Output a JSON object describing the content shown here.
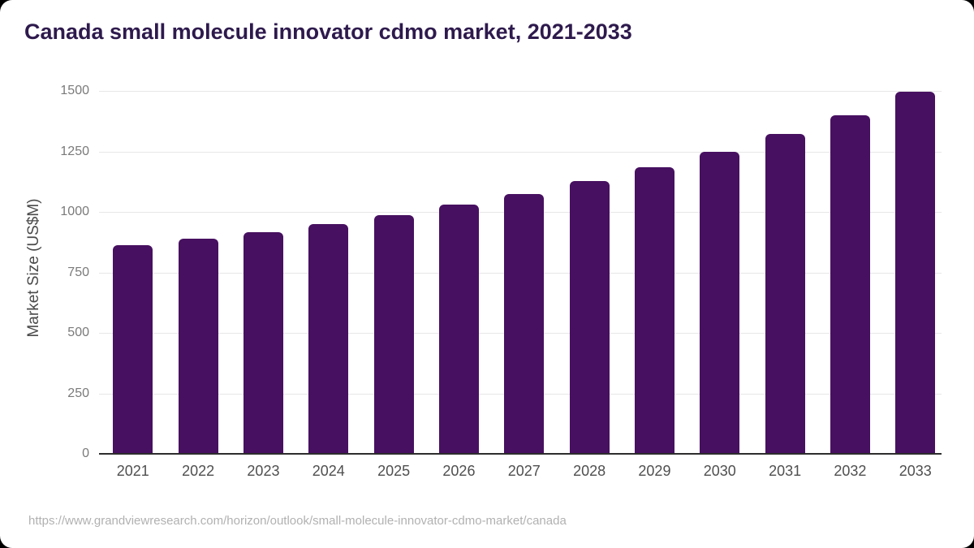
{
  "page": {
    "background_color": "#000000",
    "source_url": "https://www.grandviewresearch.com/horizon/outlook/small-molecule-innovator-cdmo-market/canada"
  },
  "chart_data": {
    "type": "bar",
    "title": "Canada small molecule innovator cdmo market, 2021-2033",
    "categories": [
      "2021",
      "2022",
      "2023",
      "2024",
      "2025",
      "2026",
      "2027",
      "2028",
      "2029",
      "2030",
      "2031",
      "2032",
      "2033"
    ],
    "values": [
      862,
      890,
      917,
      950,
      986,
      1031,
      1075,
      1129,
      1184,
      1248,
      1322,
      1401,
      1495
    ],
    "xlabel": "",
    "ylabel": "Market Size (US$M)",
    "ylim": [
      0,
      1500
    ],
    "yticks": [
      0,
      250,
      500,
      750,
      1000,
      1250,
      1500
    ],
    "grid": true,
    "legend": false,
    "colors": {
      "bar": "#471060",
      "title": "#2e1a4d",
      "gridline": "#e7e7e7",
      "axis_line": "#2d2d2d",
      "y_tick_label": "#7a7a7a",
      "x_tick_label": "#4f4f4f",
      "y_axis_title": "#4a4a4a",
      "source_text": "#b1b1b1",
      "card_background": "#ffffff",
      "page_background": "#000000"
    }
  }
}
